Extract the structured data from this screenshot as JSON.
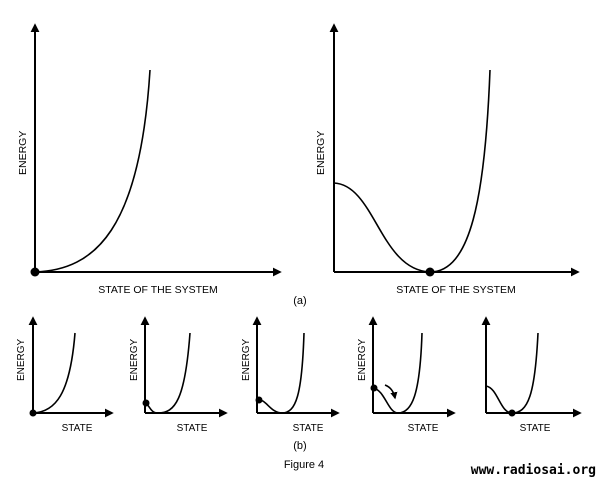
{
  "large_panels": [
    {
      "y_label": "ENERGY",
      "x_label": "STATE OF THE SYSTEM"
    },
    {
      "y_label": "ENERGY",
      "x_label": "STATE OF THE SYSTEM"
    }
  ],
  "small_panels": [
    {
      "y_label": "ENERGY",
      "x_label": "STATE"
    },
    {
      "y_label": "ENERGY",
      "x_label": "STATE"
    },
    {
      "y_label": "ENERGY",
      "x_label": "STATE"
    },
    {
      "y_label": "ENERGY",
      "x_label": "STATE"
    },
    {
      "y_label": "",
      "x_label": "STATE"
    }
  ],
  "sub_label_a": "(a)",
  "sub_label_b": "(b)",
  "caption": "Figure 4",
  "watermark": "www.radiosai.org",
  "colors": {
    "ink": "#000000",
    "background": "#ffffff"
  }
}
